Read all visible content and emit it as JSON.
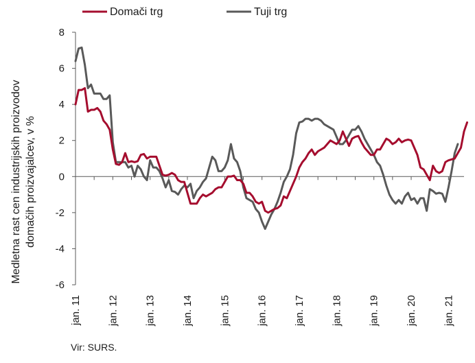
{
  "chart_data": {
    "type": "line",
    "title": "",
    "ylabel": "Medletna rast cen industrijskih proizvodov domačih proizvajalcev, v %",
    "ylabel_lines": [
      "Medletna rast cen industrijskih proizvodov",
      "domačih proizvajalcev, v %"
    ],
    "xlabel": "",
    "ylim": [
      -6,
      8
    ],
    "yticks": [
      -6,
      -4,
      -2,
      0,
      2,
      4,
      6,
      8
    ],
    "xlim": [
      0,
      125
    ],
    "xtick_labels": [
      "jan. 11",
      "jan. 12",
      "jan. 13",
      "jan. 14",
      "jan. 15",
      "jan. 16",
      "jan. 17",
      "jan. 18",
      "jan. 19",
      "jan. 20",
      "jan. 21"
    ],
    "xtick_positions": [
      0,
      12,
      24,
      36,
      48,
      60,
      72,
      84,
      96,
      108,
      120
    ],
    "legend_position": "top-left",
    "grid": false,
    "series": [
      {
        "name": "Domači trg",
        "color": "#a50d2e",
        "values": [
          4.0,
          4.8,
          4.8,
          4.9,
          3.6,
          3.7,
          3.7,
          3.8,
          3.6,
          3.1,
          2.9,
          2.6,
          1.5,
          0.7,
          0.65,
          0.8,
          1.3,
          0.8,
          0.85,
          0.8,
          0.85,
          1.2,
          1.25,
          1.0,
          1.1,
          1.1,
          1.1,
          0.6,
          0.1,
          0.05,
          0.1,
          0.2,
          0.1,
          -0.2,
          -0.3,
          -0.3,
          -0.9,
          -1.5,
          -1.5,
          -1.5,
          -1.2,
          -1.0,
          -1.1,
          -1.0,
          -0.9,
          -0.7,
          -0.6,
          -0.6,
          -0.3,
          0.0,
          0.0,
          0.05,
          -0.2,
          -0.2,
          -0.4,
          -0.9,
          -0.9,
          -1.1,
          -1.4,
          -1.5,
          -1.4,
          -1.9,
          -2.0,
          -1.9,
          -1.8,
          -1.75,
          -1.6,
          -1.1,
          -1.2,
          -0.8,
          -0.4,
          0.0,
          0.5,
          0.8,
          1.0,
          1.3,
          1.5,
          1.2,
          1.4,
          1.5,
          1.6,
          1.8,
          2.0,
          1.9,
          1.8,
          2.0,
          2.5,
          2.1,
          1.7,
          2.1,
          2.2,
          2.25,
          1.9,
          1.6,
          1.4,
          1.2,
          1.2,
          1.5,
          1.5,
          1.8,
          2.1,
          2.0,
          1.8,
          1.9,
          2.1,
          1.9,
          2.0,
          2.05,
          2.0,
          1.6,
          1.2,
          0.5,
          0.4,
          0.1,
          -0.2,
          0.6,
          0.3,
          0.2,
          0.3,
          0.8,
          0.9,
          0.95,
          1.0,
          1.3,
          1.6,
          2.5,
          3.0
        ]
      },
      {
        "name": "Tuji trg",
        "color": "#595959",
        "values": [
          6.4,
          7.1,
          7.15,
          6.2,
          4.9,
          5.1,
          4.6,
          4.6,
          4.6,
          4.3,
          4.3,
          4.5,
          1.9,
          0.8,
          0.8,
          0.8,
          0.8,
          0.5,
          0.6,
          0.0,
          0.6,
          0.4,
          0.0,
          -0.2,
          0.9,
          0.5,
          0.5,
          0.3,
          -0.1,
          -0.6,
          -0.2,
          -0.8,
          -0.85,
          -1.0,
          -0.7,
          -0.5,
          -0.6,
          -0.4,
          -1.2,
          -0.8,
          -0.6,
          -0.3,
          -0.1,
          0.5,
          1.1,
          0.9,
          0.3,
          0.3,
          0.5,
          0.9,
          1.8,
          1.0,
          0.8,
          0.3,
          -0.6,
          -1.2,
          -1.3,
          -1.4,
          -1.8,
          -2.0,
          -2.5,
          -2.9,
          -2.5,
          -2.1,
          -1.8,
          -1.4,
          -0.9,
          -0.3,
          0.0,
          0.4,
          1.2,
          2.4,
          3.0,
          3.05,
          3.2,
          3.2,
          3.1,
          3.2,
          3.2,
          3.1,
          2.9,
          2.8,
          2.7,
          2.6,
          2.2,
          1.8,
          1.8,
          2.0,
          2.3,
          2.6,
          2.6,
          2.8,
          2.5,
          2.1,
          1.8,
          1.5,
          1.2,
          0.8,
          0.6,
          0.1,
          -0.5,
          -1.0,
          -1.3,
          -1.5,
          -1.3,
          -1.5,
          -1.1,
          -0.9,
          -1.3,
          -1.2,
          -1.5,
          -1.2,
          -1.2,
          -1.9,
          -0.7,
          -0.8,
          -0.95,
          -0.9,
          -0.95,
          -1.4,
          -0.6,
          0.3,
          1.3,
          1.8
        ]
      }
    ]
  },
  "source": "Vir: SURS.",
  "colors": {
    "axis": "#595959",
    "text": "#1a1a1a",
    "background": "#ffffff"
  }
}
